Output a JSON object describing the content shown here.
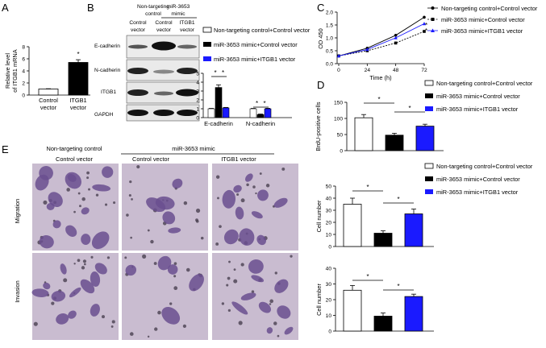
{
  "panels": {
    "A": "A",
    "B": "B",
    "C": "C",
    "D": "D",
    "E": "E"
  },
  "colors": {
    "nontargeting": "#ffffff",
    "mimic": "#000000",
    "itgb1": "#1a1aff",
    "lineA": "#000000",
    "lineB": "#000000",
    "lineC": "#1a1aff",
    "stain_bg": "#c9bcd0",
    "stain_cell": "#6a4f8f"
  },
  "legend": {
    "items": [
      "Non-targeting control+Control vector",
      "miR-3653 mimic+Control vector",
      "miR-3653 mimic+ITGB1 vector"
    ]
  },
  "panelB": {
    "header_group1": "Non-targeting control",
    "header_group2": "miR-3653 mimic",
    "lanes": [
      "Control vector",
      "Control vector",
      "ITGB1 vector"
    ],
    "lane_lines": [
      [
        "Control",
        "vector"
      ],
      [
        "Control",
        "vector"
      ],
      [
        "ITGB1",
        "vector"
      ]
    ],
    "group1_lines": [
      "Non-targeting",
      "control"
    ],
    "group2_lines": [
      "miR-3653",
      "mimic"
    ],
    "blots": [
      "E-cadherin",
      "N-cadherin",
      "ITGB1",
      "GAPDH"
    ]
  },
  "chart_data": [
    {
      "panel": "A",
      "type": "bar",
      "categories": [
        "Control vector",
        "ITGB1 vector"
      ],
      "category_lines": [
        [
          "Control",
          "vector"
        ],
        [
          "ITGB1",
          "vector"
        ]
      ],
      "values": [
        1.0,
        5.4
      ],
      "errors": [
        0.05,
        0.45
      ],
      "ylabel": "Relative level of ITGB1 mRNA",
      "ylabel_lines": [
        "Relative level",
        "of ITGB1 mRNA"
      ],
      "ylim": [
        0,
        8
      ],
      "yticks": [
        0,
        2,
        4,
        6,
        8
      ],
      "significance": [
        "*"
      ]
    },
    {
      "panel": "B",
      "type": "bar",
      "categories": [
        "E-cadherin",
        "N-cadherin"
      ],
      "series": [
        {
          "values": [
            1.0,
            1.0
          ],
          "errors": [
            0.04,
            0.04
          ]
        },
        {
          "values": [
            3.4,
            0.35
          ],
          "errors": [
            0.3,
            0.05
          ]
        },
        {
          "values": [
            1.1,
            1.0
          ],
          "errors": [
            0.05,
            0.05
          ]
        }
      ],
      "ylim": [
        0,
        5
      ],
      "yticks": [
        0,
        1,
        2,
        3,
        4,
        5
      ],
      "significance": [
        "*",
        "*",
        "*",
        "*"
      ]
    },
    {
      "panel": "C",
      "type": "line",
      "x": [
        0,
        24,
        48,
        72
      ],
      "xticks": [
        "0",
        "24",
        "48",
        "72"
      ],
      "series": [
        {
          "values": [
            0.3,
            0.6,
            1.1,
            1.8
          ],
          "errors": [
            0.02,
            0.03,
            0.05,
            0.06
          ]
        },
        {
          "values": [
            0.3,
            0.5,
            0.8,
            1.25
          ],
          "errors": [
            0.02,
            0.03,
            0.04,
            0.05
          ]
        },
        {
          "values": [
            0.3,
            0.55,
            1.0,
            1.55
          ],
          "errors": [
            0.02,
            0.03,
            0.05,
            0.05
          ]
        }
      ],
      "xlabel": "Time (h)",
      "ylabel": "OD 450",
      "ylim": [
        0,
        2.0
      ],
      "yticks": [
        "0.0",
        "0.5",
        "1.0",
        "1.5",
        "2.0"
      ],
      "significance": [
        "*",
        "*"
      ]
    },
    {
      "panel": "D",
      "type": "bar",
      "categories": [
        "Non-targeting control+Control vector",
        "miR-3653 mimic+Control vector",
        "miR-3653 mimic+ITGB1 vector"
      ],
      "values": [
        102,
        48,
        76
      ],
      "errors": [
        10,
        6,
        6
      ],
      "ylabel": "BrdU-positive cells",
      "ylim": [
        0,
        150
      ],
      "yticks": [
        0,
        50,
        100,
        150
      ],
      "significance": [
        "*",
        "*"
      ]
    },
    {
      "panel": "E-migration",
      "type": "bar",
      "categories": [
        "Non-targeting control+Control vector",
        "miR-3653 mimic+Control vector",
        "miR-3653 mimic+ITGB1 vector"
      ],
      "values": [
        35,
        11,
        27
      ],
      "errors": [
        5,
        2,
        4
      ],
      "ylabel": "Cell number",
      "ylim": [
        0,
        50
      ],
      "yticks": [
        0,
        10,
        20,
        30,
        40,
        50
      ],
      "significance": [
        "*",
        "*"
      ]
    },
    {
      "panel": "E-invasion",
      "type": "bar",
      "categories": [
        "Non-targeting control+Control vector",
        "miR-3653 mimic+Control vector",
        "miR-3653 mimic+ITGB1 vector"
      ],
      "values": [
        26,
        9.5,
        22
      ],
      "errors": [
        3,
        2,
        1.5
      ],
      "ylabel": "Cell number",
      "ylim": [
        0,
        40
      ],
      "yticks": [
        0,
        10,
        20,
        30,
        40
      ],
      "significance": [
        "*",
        "*"
      ]
    }
  ],
  "panelE": {
    "header_group1": "Non-targeting control",
    "header_group2": "miR-3653 mimic",
    "columns": [
      "Control vector",
      "Control vector",
      "ITGB1 vector"
    ],
    "rows": [
      "Migration",
      "Invasion"
    ]
  }
}
